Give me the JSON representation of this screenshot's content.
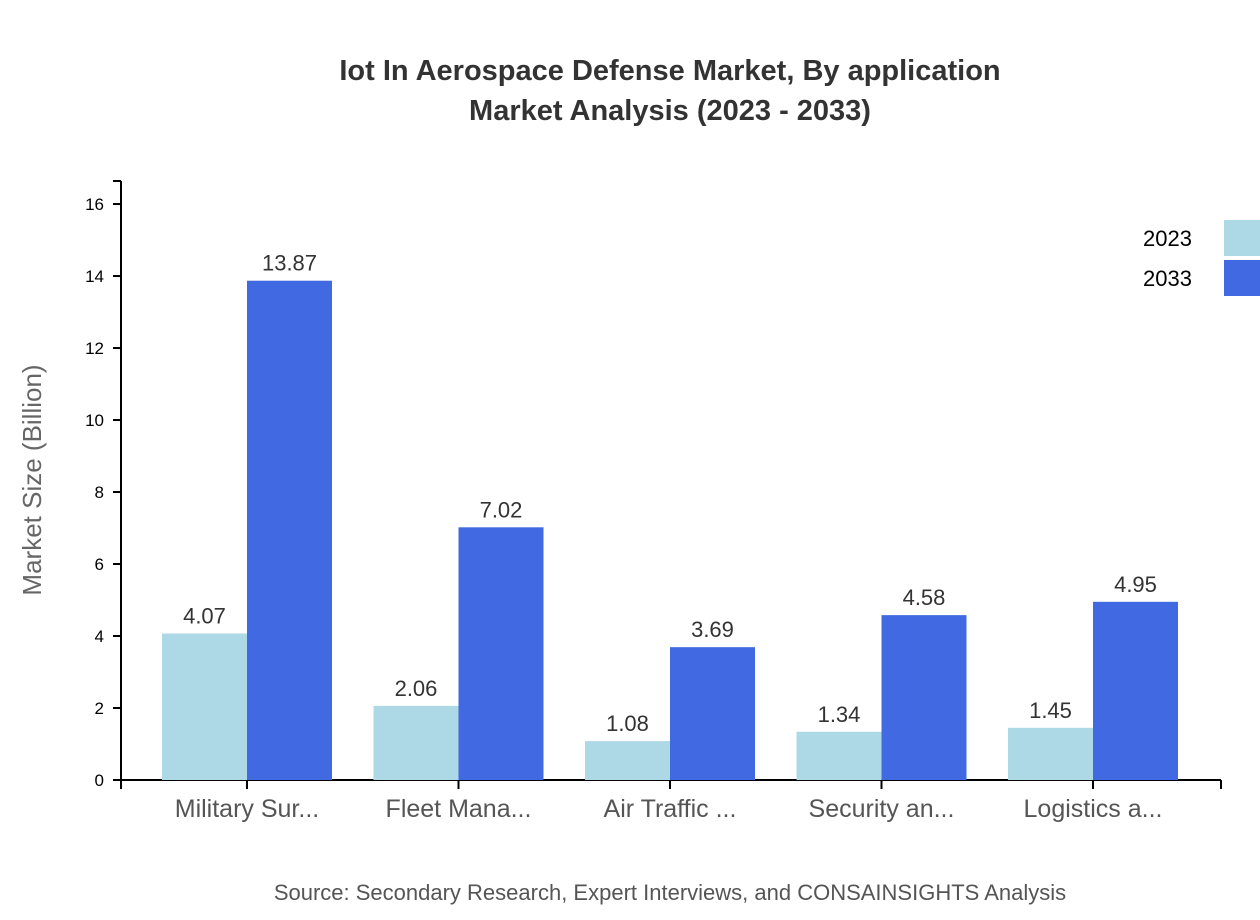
{
  "chart_data": {
    "type": "bar",
    "title": "Iot In Aerospace Defense Market, By application",
    "subtitle": "Market Analysis (2023 - 2033)",
    "xlabel": "",
    "ylabel": "Market Size (Billion)",
    "ylim": [
      0,
      16.64
    ],
    "yticks": [
      0,
      2,
      4,
      6,
      8,
      10,
      12,
      14,
      16
    ],
    "categories": [
      "Military Sur...",
      "Fleet Mana...",
      "Air Traffic ...",
      "Security an...",
      "Logistics a..."
    ],
    "series": [
      {
        "name": "2023",
        "color": "#add8e6",
        "values": [
          4.07,
          2.06,
          1.08,
          1.34,
          1.45
        ]
      },
      {
        "name": "2033",
        "color": "#4169e1",
        "values": [
          13.87,
          7.02,
          3.69,
          4.58,
          4.95
        ]
      }
    ],
    "grid": false,
    "legend_position": "top-right",
    "source": "Source: Secondary Research, Expert Interviews, and CONSAINSIGHTS Analysis"
  }
}
